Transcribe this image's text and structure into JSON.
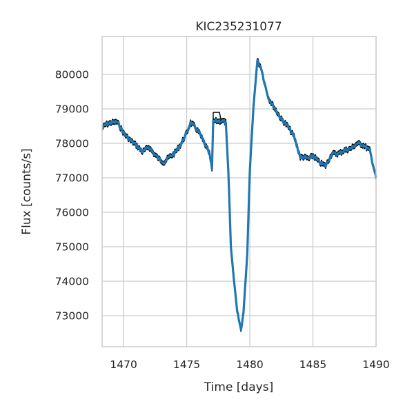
{
  "chart_data": {
    "type": "line",
    "title": "KIC235231077",
    "xlabel": "Time [days]",
    "ylabel": "Flux [counts/s]",
    "xlim": [
      1468.3,
      1490.0
    ],
    "ylim": [
      72100,
      81100
    ],
    "xticks": [
      1470,
      1475,
      1480,
      1485,
      1490
    ],
    "yticks": [
      73000,
      74000,
      75000,
      76000,
      77000,
      78000,
      79000,
      80000
    ],
    "grid": true,
    "colors": {
      "flux": "#1f77b4",
      "envelope": "#000000",
      "grid": "#cccccc",
      "axes": "#cccccc"
    },
    "series": [
      {
        "x": [
          1468.3,
          1468.6,
          1469.0,
          1469.5,
          1470.0,
          1470.5,
          1471.0,
          1471.5,
          1472.0,
          1472.4,
          1472.8,
          1473.2,
          1473.6,
          1474.0,
          1474.5,
          1475.0,
          1475.3,
          1475.6,
          1476.0,
          1476.4,
          1476.8,
          1477.0,
          1477.1,
          1477.2,
          1477.5,
          1477.9,
          1478.1,
          1478.3,
          1478.5,
          1478.8,
          1479.0,
          1479.3,
          1479.5,
          1479.8,
          1480.0,
          1480.3,
          1480.6,
          1480.9,
          1481.2,
          1481.5,
          1482.0,
          1482.5,
          1483.0,
          1483.5,
          1484.0,
          1484.3,
          1484.7,
          1485.0,
          1485.5,
          1486.0,
          1486.5,
          1487.0,
          1487.5,
          1488.0,
          1488.5,
          1489.0,
          1489.5,
          1490.0
        ],
        "y": [
          78450,
          78550,
          78600,
          78620,
          78300,
          78100,
          77950,
          77750,
          77900,
          77700,
          77550,
          77450,
          77600,
          77700,
          77950,
          78300,
          78600,
          78500,
          78300,
          78000,
          77700,
          77250,
          78650,
          78650,
          78650,
          78650,
          78600,
          77200,
          75000,
          73800,
          73100,
          72600,
          73100,
          74800,
          77200,
          79100,
          80400,
          80200,
          79700,
          79300,
          79000,
          78700,
          78500,
          78200,
          77600,
          77600,
          77550,
          77650,
          77450,
          77350,
          77700,
          77700,
          77800,
          77850,
          78000,
          77950,
          77800,
          77000
        ]
      }
    ],
    "upper_envelope": {
      "x": [
        1477.1,
        1477.2,
        1477.6,
        1477.7,
        1478.0,
        1478.1
      ],
      "y": [
        78900,
        78900,
        78900,
        78700,
        78700,
        78700
      ]
    }
  }
}
